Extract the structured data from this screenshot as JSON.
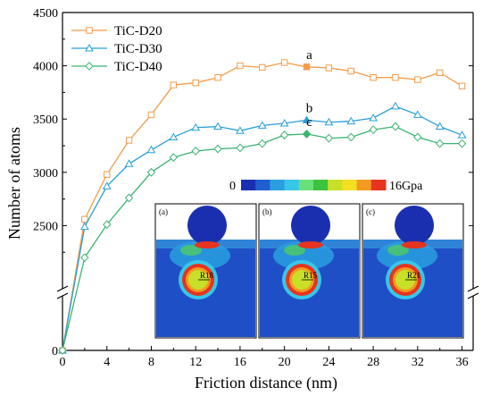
{
  "chart_data": {
    "type": "line",
    "xlabel": "Friction distance (nm)",
    "ylabel": "Number of atoms",
    "xlim": [
      0,
      37
    ],
    "xticks": [
      0,
      4,
      8,
      12,
      16,
      20,
      24,
      28,
      32,
      36
    ],
    "yticks": [
      2500,
      3000,
      3500,
      4000,
      4500
    ],
    "y_axis_break": true,
    "grid": false,
    "legend_position": "top-left",
    "series": [
      {
        "name": "TiC-D20",
        "color": "#f39c4a",
        "marker": "square",
        "x": [
          0,
          2,
          4,
          6,
          8,
          10,
          12,
          14,
          16,
          18,
          20,
          22,
          24,
          26,
          28,
          30,
          32,
          34,
          36
        ],
        "y": [
          0,
          2560,
          2980,
          3300,
          3540,
          3820,
          3840,
          3890,
          4000,
          3985,
          4030,
          3990,
          3980,
          3950,
          3890,
          3890,
          3870,
          3935,
          3810
        ]
      },
      {
        "name": "TiC-D30",
        "color": "#2a9fd6",
        "marker": "triangle",
        "x": [
          0,
          2,
          4,
          6,
          8,
          10,
          12,
          14,
          16,
          18,
          20,
          22,
          24,
          26,
          28,
          30,
          32,
          34,
          36
        ],
        "y": [
          0,
          2490,
          2870,
          3080,
          3210,
          3330,
          3420,
          3430,
          3390,
          3440,
          3460,
          3490,
          3470,
          3480,
          3510,
          3620,
          3540,
          3430,
          3350
        ]
      },
      {
        "name": "TiC-D40",
        "color": "#3cb371",
        "marker": "diamond",
        "x": [
          0,
          2,
          4,
          6,
          8,
          10,
          12,
          14,
          16,
          18,
          20,
          22,
          24,
          26,
          28,
          30,
          32,
          34,
          36
        ],
        "y": [
          0,
          2200,
          2510,
          2760,
          3000,
          3140,
          3200,
          3220,
          3230,
          3270,
          3350,
          3360,
          3320,
          3330,
          3400,
          3430,
          3330,
          3270,
          3270
        ]
      }
    ],
    "annotations": [
      {
        "text": "a",
        "x": 22,
        "y": 3990
      },
      {
        "text": "b",
        "x": 22,
        "y": 3490
      },
      {
        "text": "c",
        "x": 22,
        "y": 3360
      }
    ],
    "colorbar": {
      "min_label": "0",
      "max_label": "16Gpa",
      "colors": [
        "#1a2fb0",
        "#1f5fd0",
        "#2a9fe0",
        "#37c7e8",
        "#6be07a",
        "#3cc43c",
        "#c8e028",
        "#f2e021",
        "#f39a21",
        "#e6341e"
      ]
    },
    "insets": [
      {
        "label": "(a)",
        "radius_label": "R18"
      },
      {
        "label": "(b)",
        "radius_label": "R15"
      },
      {
        "label": "(c)",
        "radius_label": "R21"
      }
    ]
  }
}
